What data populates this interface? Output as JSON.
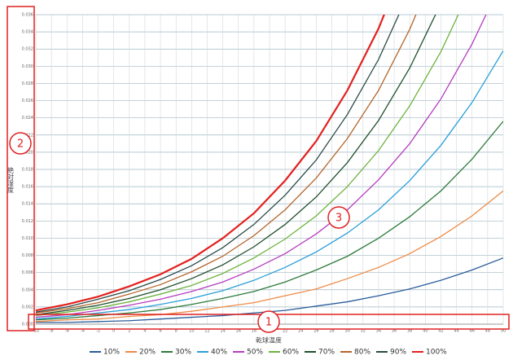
{
  "chart_data": {
    "type": "line",
    "x_label": "乾球温度",
    "y_label": "絶対湿度",
    "x": [
      -10,
      -6,
      -2,
      2,
      6,
      10,
      14,
      18,
      22,
      26,
      30,
      34,
      38,
      42,
      46,
      50
    ],
    "xlim": [
      -10,
      50
    ],
    "xticks": [
      -10,
      -8,
      -6,
      -4,
      -2,
      0,
      2,
      4,
      6,
      8,
      10,
      12,
      14,
      16,
      18,
      20,
      22,
      24,
      26,
      28,
      30,
      32,
      34,
      36,
      38,
      40,
      42,
      44,
      46,
      48,
      50
    ],
    "ylim": [
      0,
      0.036
    ],
    "yticks": [
      {
        "value": 0,
        "label": "0.000"
      },
      0.002,
      0.004,
      0.006,
      0.008,
      {
        "value": 0.01,
        "label": "0.010"
      },
      0.012,
      0.014,
      0.016,
      0.018,
      {
        "value": 0.02,
        "label": "0.020"
      },
      0.022,
      0.024,
      0.026,
      0.028,
      {
        "value": 0.03,
        "label": "0.030"
      },
      0.032,
      0.034,
      0.036
    ],
    "grid": true,
    "legend": "bottom",
    "series": [
      {
        "name": "10%",
        "color": "#2a5c9a",
        "values": [
          0.0002,
          0.0002,
          0.0003,
          0.0004,
          0.0006,
          0.0008,
          0.001,
          0.0013,
          0.0016,
          0.0021,
          0.0026,
          0.0033,
          0.0041,
          0.0051,
          0.0063,
          0.0077
        ]
      },
      {
        "name": "20%",
        "color": "#ef8a45",
        "values": [
          0.0003,
          0.0005,
          0.0006,
          0.0009,
          0.0011,
          0.0015,
          0.002,
          0.0025,
          0.0033,
          0.0041,
          0.0053,
          0.0066,
          0.0082,
          0.0102,
          0.0126,
          0.0155
        ]
      },
      {
        "name": "30%",
        "color": "#2e7a3a",
        "values": [
          0.0005,
          0.0007,
          0.001,
          0.0013,
          0.0017,
          0.0023,
          0.003,
          0.0038,
          0.0049,
          0.0063,
          0.0079,
          0.01,
          0.0125,
          0.0155,
          0.0192,
          0.0236
        ]
      },
      {
        "name": "40%",
        "color": "#2a9ed8",
        "values": [
          0.0006,
          0.0009,
          0.0013,
          0.0017,
          0.0023,
          0.003,
          0.0039,
          0.0051,
          0.0066,
          0.0084,
          0.0106,
          0.0133,
          0.0167,
          0.0208,
          0.0258,
          0.0318
        ]
      },
      {
        "name": "50%",
        "color": "#b53dc0",
        "values": [
          0.0008,
          0.0011,
          0.0016,
          0.0022,
          0.0029,
          0.0038,
          0.0049,
          0.0064,
          0.0082,
          0.0105,
          0.0133,
          0.0168,
          0.021,
          0.0262,
          0.0326,
          0.0402
        ]
      },
      {
        "name": "60%",
        "color": "#6db33f",
        "values": [
          0.001,
          0.0014,
          0.0019,
          0.0026,
          0.0035,
          0.0045,
          0.0059,
          0.0077,
          0.0099,
          0.0126,
          0.016,
          0.0202,
          0.0254,
          0.0317,
          0.0394,
          null
        ]
      },
      {
        "name": "70%",
        "color": "#1f4f2c",
        "values": [
          0.0011,
          0.0016,
          0.0022,
          0.003,
          0.004,
          0.0053,
          0.0069,
          0.009,
          0.0116,
          0.0148,
          0.0188,
          0.0237,
          0.0298,
          0.0373,
          null,
          null
        ]
      },
      {
        "name": "80%",
        "color": "#b4652b",
        "values": [
          0.0013,
          0.0018,
          0.0025,
          0.0035,
          0.0046,
          0.0061,
          0.0079,
          0.0103,
          0.0133,
          0.017,
          0.0216,
          0.0272,
          0.0343,
          0.0429,
          null,
          null
        ]
      },
      {
        "name": "90%",
        "color": "#2b4a47",
        "values": [
          0.0014,
          0.002,
          0.0029,
          0.0039,
          0.0052,
          0.0068,
          0.0089,
          0.0116,
          0.015,
          0.0191,
          0.0244,
          0.0308,
          0.0388,
          null,
          null,
          null
        ]
      },
      {
        "name": "100%",
        "color": "#e3201e",
        "values": [
          0.0016,
          0.0023,
          0.0032,
          0.0044,
          0.0058,
          0.0076,
          0.01,
          0.0129,
          0.0167,
          0.0213,
          0.0272,
          0.0344,
          0.0434,
          null,
          null,
          null
        ]
      }
    ],
    "annotations": [
      "1",
      "2",
      "3"
    ]
  }
}
